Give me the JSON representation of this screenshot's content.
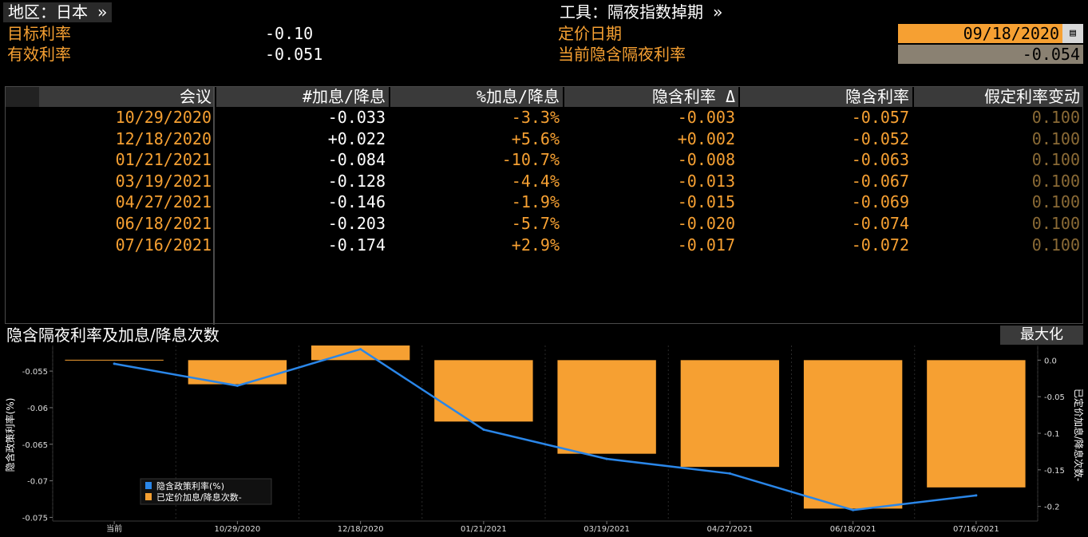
{
  "header": {
    "region_label": "地区：日本 »",
    "tool_label": "工具：隔夜指数掉期 »",
    "target_rate_label": "目标利率",
    "target_rate_value": "-0.10",
    "effective_rate_label": "有效利率",
    "effective_rate_value": "-0.051",
    "pricing_date_label": "定价日期",
    "pricing_date_value": "09/18/2020",
    "implied_overnight_label": "当前隐含隔夜利率",
    "implied_overnight_value": "-0.054"
  },
  "table": {
    "columns": [
      "会议",
      "#加息/降息",
      "%加息/降息",
      "隐含利率 Δ",
      "隐含利率",
      "假定利率变动"
    ],
    "rows": [
      [
        "10/29/2020",
        "-0.033",
        "-3.3%",
        "-0.003",
        "-0.057",
        "0.100"
      ],
      [
        "12/18/2020",
        "+0.022",
        "+5.6%",
        "+0.002",
        "-0.052",
        "0.100"
      ],
      [
        "01/21/2021",
        "-0.084",
        "-10.7%",
        "-0.008",
        "-0.063",
        "0.100"
      ],
      [
        "03/19/2021",
        "-0.128",
        "-4.4%",
        "-0.013",
        "-0.067",
        "0.100"
      ],
      [
        "04/27/2021",
        "-0.146",
        "-1.9%",
        "-0.015",
        "-0.069",
        "0.100"
      ],
      [
        "06/18/2021",
        "-0.203",
        "-5.7%",
        "-0.020",
        "-0.074",
        "0.100"
      ],
      [
        "07/16/2021",
        "-0.174",
        "+2.9%",
        "-0.017",
        "-0.072",
        "0.100"
      ]
    ]
  },
  "chart": {
    "title": "隐含隔夜利率及加息/降息次数",
    "maximize_label": "最大化",
    "left_axis_label": "隐含政策利率(%)",
    "right_axis_label": "已定价加息/降息次数-",
    "left_ticks": [
      "-0.055",
      "-0.06",
      "-0.065",
      "-0.07",
      "-0.075"
    ],
    "right_ticks": [
      "0.0",
      "-0.05",
      "-0.1",
      "-0.15",
      "-0.2"
    ],
    "legend": [
      "隐含政策利率(%)",
      "已定价加息/降息次数-"
    ],
    "colors": {
      "line": "#2a86e8",
      "bar": "#f6a032"
    }
  },
  "chart_data": {
    "type": "bar",
    "categories": [
      "当前",
      "10/29/2020",
      "12/18/2020",
      "01/21/2021",
      "03/19/2021",
      "04/27/2021",
      "06/18/2021",
      "07/16/2021"
    ],
    "series": [
      {
        "name": "已定价加息/降息次数-",
        "type": "bar",
        "axis": "right",
        "values": [
          0.0,
          -0.033,
          0.022,
          -0.084,
          -0.128,
          -0.146,
          -0.203,
          -0.174
        ]
      },
      {
        "name": "隐含政策利率(%)",
        "type": "line",
        "axis": "left",
        "values": [
          -0.054,
          -0.057,
          -0.052,
          -0.063,
          -0.067,
          -0.069,
          -0.074,
          -0.072
        ]
      }
    ],
    "ylim_left": [
      -0.0755,
      -0.0515
    ],
    "ylim_right": [
      -0.22,
      0.02
    ],
    "grid": true,
    "legend_position": "bottom-left"
  }
}
